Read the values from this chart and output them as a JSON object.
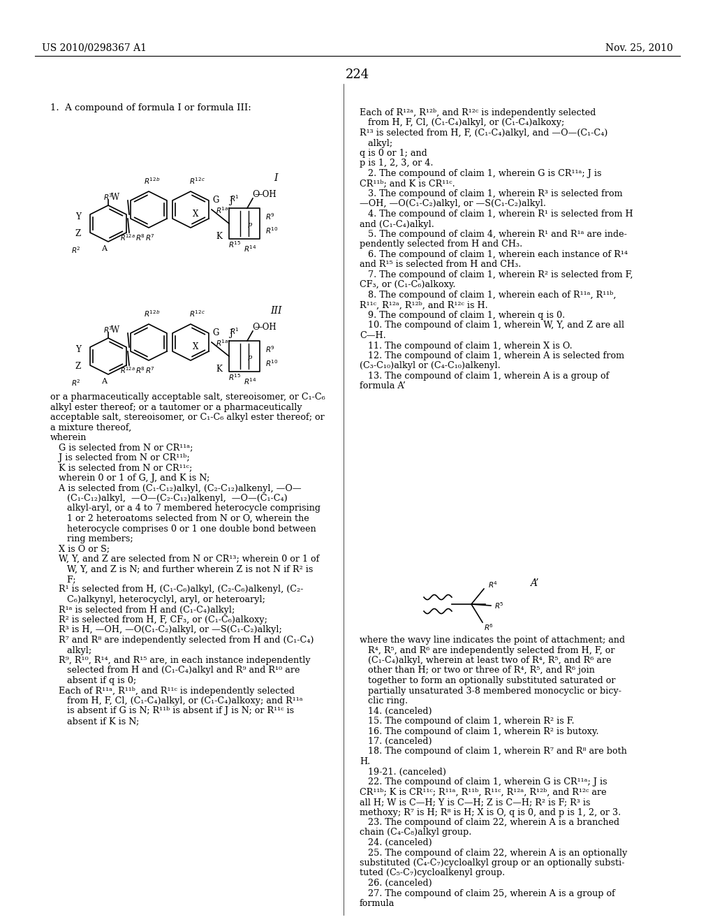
{
  "bg_color": "#ffffff",
  "header_left": "US 2010/0298367 A1",
  "header_right": "Nov. 25, 2010",
  "page_number": "224",
  "left_column_text": [
    "or a pharmaceutically acceptable salt, stereoisomer, or C₁-C₆",
    "alkyl ester thereof; or a tautomer or a pharmaceutically",
    "acceptable salt, stereoisomer, or C₁-C₆ alkyl ester thereof; or",
    "a mixture thereof,",
    "wherein",
    "   G is selected from N or CR¹¹ᵃ;",
    "   J is selected from N or CR¹¹ᵇ;",
    "   K is selected from N or CR¹¹ᶜ;",
    "   wherein 0 or 1 of G, J, and K is N;",
    "   A is selected from (C₁-C₁₂)alkyl, (C₂-C₁₂)alkenyl, —O—",
    "      (C₁-C₁₂)alkyl,  —O—(C₂-C₁₂)alkenyl,  —O—(C₁-C₄)",
    "      alkyl-aryl, or a 4 to 7 membered heterocycle comprising",
    "      1 or 2 heteroatoms selected from N or O, wherein the",
    "      heterocycle comprises 0 or 1 one double bond between",
    "      ring members;",
    "   X is O or S;",
    "   W, Y, and Z are selected from N or CR¹³; wherein 0 or 1 of",
    "      W, Y, and Z is N; and further wherein Z is not N if R² is",
    "      F;",
    "   R¹ is selected from H, (C₁-C₆)alkyl, (C₂-C₆)alkenyl, (C₂-",
    "      C₆)alkynyl, heterocyclyl, aryl, or heteroaryl;",
    "   R¹ᵃ is selected from H and (C₁-C₄)alkyl;",
    "   R² is selected from H, F, CF₃, or (C₁-C₆)alkoxy;",
    "   R³ is H, —OH, —O(C₁-C₂)alkyl, or —S(C₁-C₂)alkyl;",
    "   R⁷ and R⁸ are independently selected from H and (C₁-C₄)",
    "      alkyl;",
    "   R⁹, R¹⁰, R¹⁴, and R¹⁵ are, in each instance independently",
    "      selected from H and (C₁-C₄)alkyl and R⁹ and R¹⁰ are",
    "      absent if q is 0;",
    "   Each of R¹¹ᵃ, R¹¹ᵇ, and R¹¹ᶜ is independently selected",
    "      from H, F, Cl, (C₁-C₄)alkyl, or (C₁-C₄)alkoxy; and R¹¹ᵃ",
    "      is absent if G is N; R¹¹ᵇ is absent if J is N; or R¹¹ᶜ is",
    "      absent if K is N;"
  ],
  "right_column_text": [
    "Each of R¹²ᵃ, R¹²ᵇ, and R¹²ᶜ is independently selected",
    "   from H, F, Cl, (C₁-C₄)alkyl, or (C₁-C₄)alkoxy;",
    "R¹³ is selected from H, F, (C₁-C₄)alkyl, and —O—(C₁-C₄)",
    "   alkyl;",
    "q is 0 or 1; and",
    "p is 1, 2, 3, or 4.",
    "   2. The compound of claim 1, wherein G is CR¹¹ᵃ; J is",
    "CR¹¹ᵇ; and K is CR¹¹ᶜ.",
    "   3. The compound of claim 1, wherein R³ is selected from",
    "—OH, —O(C₁-C₂)alkyl, or —S(C₁-C₂)alkyl.",
    "   4. The compound of claim 1, wherein R¹ is selected from H",
    "and (C₁-C₄)alkyl.",
    "   5. The compound of claim 4, wherein R¹ and R¹ᵃ are inde-",
    "pendently selected from H and CH₃.",
    "   6. The compound of claim 1, wherein each instance of R¹⁴",
    "and R¹⁵ is selected from H and CH₃.",
    "   7. The compound of claim 1, wherein R² is selected from F,",
    "CF₃, or (C₁-C₆)alkoxy.",
    "   8. The compound of claim 1, wherein each of R¹¹ᵃ, R¹¹ᵇ,",
    "R¹¹ᶜ, R¹²ᵃ, R¹²ᵇ, and R¹²ᶜ is H.",
    "   9. The compound of claim 1, wherein q is 0.",
    "   10. The compound of claim 1, wherein W, Y, and Z are all",
    "C—H.",
    "   11. The compound of claim 1, wherein X is O.",
    "   12. The compound of claim 1, wherein A is selected from",
    "(C₃-C₁₀)alkyl or (C₄-C₁₀)alkenyl.",
    "   13. The compound of claim 1, wherein A is a group of",
    "formula A’"
  ],
  "right_column_text2": [
    "where the wavy line indicates the point of attachment; and",
    "   R⁴, R⁵, and R⁶ are independently selected from H, F, or",
    "   (C₁-C₄)alkyl, wherein at least two of R⁴, R⁵, and R⁶ are",
    "   other than H; or two or three of R⁴, R⁵, and R⁶ join",
    "   together to form an optionally substituted saturated or",
    "   partially unsaturated 3-8 membered monocyclic or bicy-",
    "   clic ring.",
    "   14. (canceled)",
    "   15. The compound of claim 1, wherein R² is F.",
    "   16. The compound of claim 1, wherein R² is butoxy.",
    "   17. (canceled)",
    "   18. The compound of claim 1, wherein R⁷ and R⁸ are both",
    "H.",
    "   19-21. (canceled)",
    "   22. The compound of claim 1, wherein G is CR¹¹ᵃ; J is",
    "CR¹¹ᵇ; K is CR¹¹ᶜ; R¹¹ᵃ, R¹¹ᵇ, R¹¹ᶜ, R¹²ᵃ, R¹²ᵇ, and R¹²ᶜ are",
    "all H; W is C—H; Y is C—H; Z is C—H; R² is F; R³ is",
    "methoxy; R⁷ is H; R⁸ is H; X is O, q is 0, and p is 1, 2, or 3.",
    "   23. The compound of claim 22, wherein A is a branched",
    "chain (C₄-C₈)alkyl group.",
    "   24. (canceled)",
    "   25. The compound of claim 22, wherein A is an optionally",
    "substituted (C₄-C₇)cycloalkyl group or an optionally substi-",
    "tuted (C₅-C₇)cycloalkenyl group.",
    "   26. (canceled)",
    "   27. The compound of claim 25, wherein A is a group of",
    "formula"
  ]
}
